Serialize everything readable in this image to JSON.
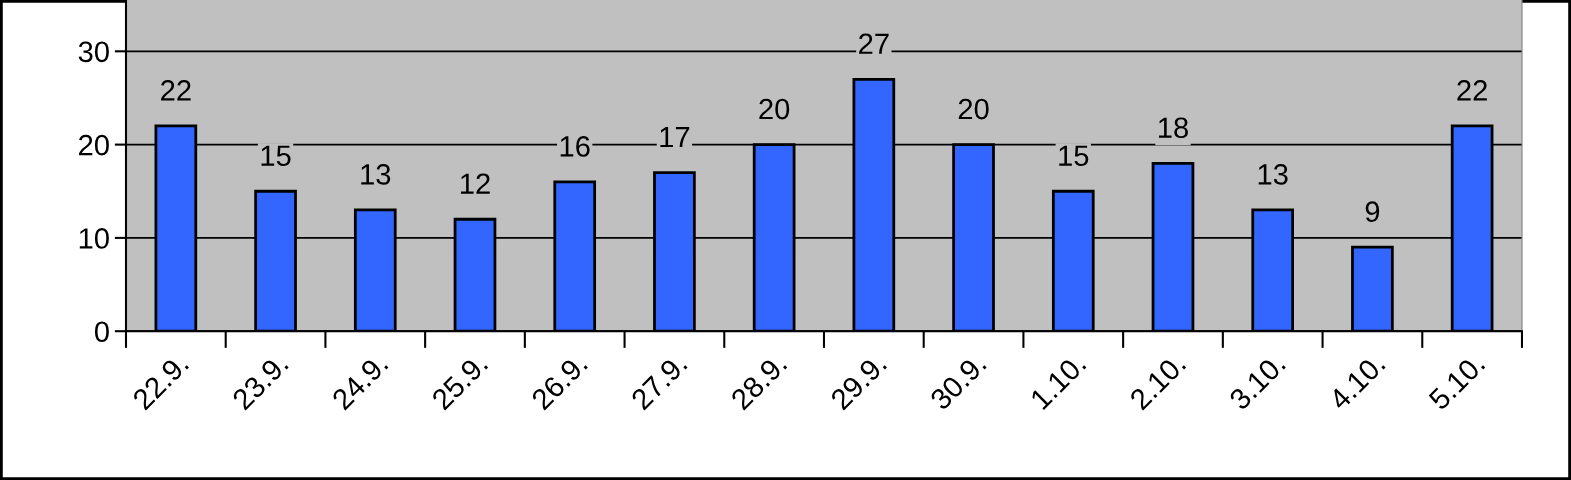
{
  "chart_data": {
    "type": "bar",
    "categories": [
      "22.9.",
      "23.9.",
      "24.9.",
      "25.9.",
      "26.9.",
      "27.9.",
      "28.9.",
      "29.9.",
      "30.9.",
      "1.10.",
      "2.10.",
      "3.10.",
      "4.10.",
      "5.10."
    ],
    "values": [
      22,
      15,
      13,
      12,
      16,
      17,
      20,
      27,
      20,
      15,
      18,
      13,
      9,
      22
    ],
    "color": "#3366ff",
    "ylim": [
      0,
      35.5
    ],
    "yticks": [
      0,
      10,
      20,
      30
    ],
    "grid": "y",
    "data_labels": true
  }
}
